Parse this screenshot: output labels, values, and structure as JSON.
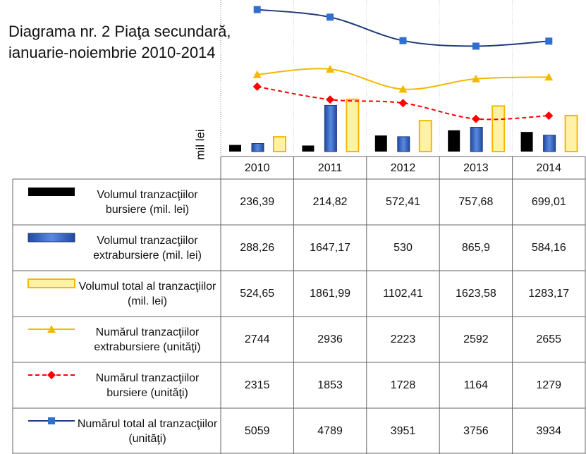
{
  "chart_data": {
    "type": "bar",
    "title": "Diagrama nr. 2 Piaţa secundară, ianuarie-noiembrie  2010-2014",
    "ylabel": "mil lei",
    "categories": [
      "2010",
      "2011",
      "2012",
      "2013",
      "2014"
    ],
    "ylim": [
      0,
      5400
    ],
    "series": [
      {
        "name": "Volumul tranzacţiilor bursiere (mil. lei)",
        "type": "bar",
        "color": "#000000",
        "values": [
          236.39,
          214.82,
          572.41,
          757.68,
          699.01
        ],
        "value_labels": [
          "236,39",
          "214,82",
          "572,41",
          "757,68",
          "699,01"
        ]
      },
      {
        "name": "Volumul  tranzacţiilor extrabursiere (mil. lei)",
        "type": "bar",
        "color": "#3565c0",
        "values": [
          288.26,
          1647.17,
          530,
          865.9,
          584.16
        ],
        "value_labels": [
          "288,26",
          "1647,17",
          "530",
          "865,9",
          "584,16"
        ]
      },
      {
        "name": "Volumul total al tranzacţiilor (mil. lei)",
        "type": "bar",
        "color": "#fff2a8",
        "values": [
          524.65,
          1861.99,
          1102.41,
          1623.58,
          1283.17
        ],
        "value_labels": [
          "524,65",
          "1861,99",
          "1102,41",
          "1623,58",
          "1283,17"
        ]
      },
      {
        "name": "Numărul tranzacţiilor extrabursiere (unităţi)",
        "type": "line",
        "marker": "triangle",
        "color": "#f5b800",
        "values": [
          2744,
          2936,
          2223,
          2592,
          2655
        ]
      },
      {
        "name": "Numărul tranzacţiilor bursiere (unităţi)",
        "type": "line",
        "marker": "diamond",
        "dashed": true,
        "color": "#ff0000",
        "values": [
          2315,
          1853,
          1728,
          1164,
          1279
        ]
      },
      {
        "name": "Numărul total al tranzacţiilor  (unităţi)",
        "type": "line",
        "marker": "square",
        "color": "#1f3a7a",
        "values": [
          5059,
          4789,
          3951,
          3756,
          3934
        ]
      }
    ]
  }
}
